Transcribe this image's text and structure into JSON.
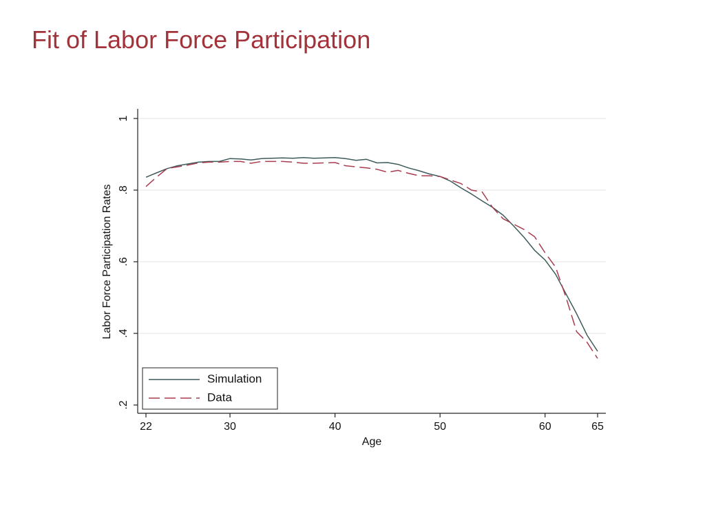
{
  "slide": {
    "title": "Fit of Labor Force Participation"
  },
  "chart_data": {
    "type": "line",
    "title": "",
    "xlabel": "Age",
    "ylabel": "Labor Force Participation Rates",
    "xlim": [
      22,
      65
    ],
    "ylim": [
      0.2,
      1.0
    ],
    "xticks": [
      22,
      30,
      40,
      50,
      60,
      65
    ],
    "xtick_labels": [
      "22",
      "30",
      "40",
      "50",
      "60",
      "65"
    ],
    "yticks": [
      0.2,
      0.4,
      0.6,
      0.8,
      1.0
    ],
    "ytick_labels": [
      ".2",
      ".4",
      ".6",
      ".8",
      "1"
    ],
    "grid": true,
    "legend_placement": "bottom-left",
    "x": [
      22,
      23,
      24,
      25,
      26,
      27,
      28,
      29,
      30,
      31,
      32,
      33,
      34,
      35,
      36,
      37,
      38,
      39,
      40,
      41,
      42,
      43,
      44,
      45,
      46,
      47,
      48,
      49,
      50,
      51,
      52,
      53,
      54,
      55,
      56,
      57,
      58,
      59,
      60,
      61,
      62,
      63,
      64,
      65
    ],
    "series": [
      {
        "name": "Simulation",
        "color": "#3d5a5a",
        "style": "solid",
        "values": [
          0.836,
          0.848,
          0.86,
          0.868,
          0.873,
          0.878,
          0.88,
          0.88,
          0.888,
          0.887,
          0.884,
          0.888,
          0.889,
          0.89,
          0.889,
          0.891,
          0.889,
          0.89,
          0.891,
          0.888,
          0.883,
          0.886,
          0.876,
          0.877,
          0.872,
          0.862,
          0.854,
          0.845,
          0.838,
          0.825,
          0.806,
          0.789,
          0.77,
          0.752,
          0.73,
          0.7,
          0.668,
          0.632,
          0.605,
          0.565,
          0.51,
          0.455,
          0.395,
          0.35
        ]
      },
      {
        "name": "Data",
        "color": "#a83c4e",
        "style": "dashed",
        "values": [
          0.81,
          0.836,
          0.86,
          0.865,
          0.87,
          0.876,
          0.878,
          0.878,
          0.88,
          0.88,
          0.875,
          0.88,
          0.88,
          0.88,
          0.878,
          0.875,
          0.875,
          0.876,
          0.877,
          0.868,
          0.865,
          0.862,
          0.858,
          0.85,
          0.855,
          0.847,
          0.84,
          0.84,
          0.838,
          0.828,
          0.818,
          0.8,
          0.795,
          0.752,
          0.72,
          0.705,
          0.69,
          0.67,
          0.625,
          0.585,
          0.5,
          0.405,
          0.375,
          0.33
        ]
      }
    ]
  }
}
